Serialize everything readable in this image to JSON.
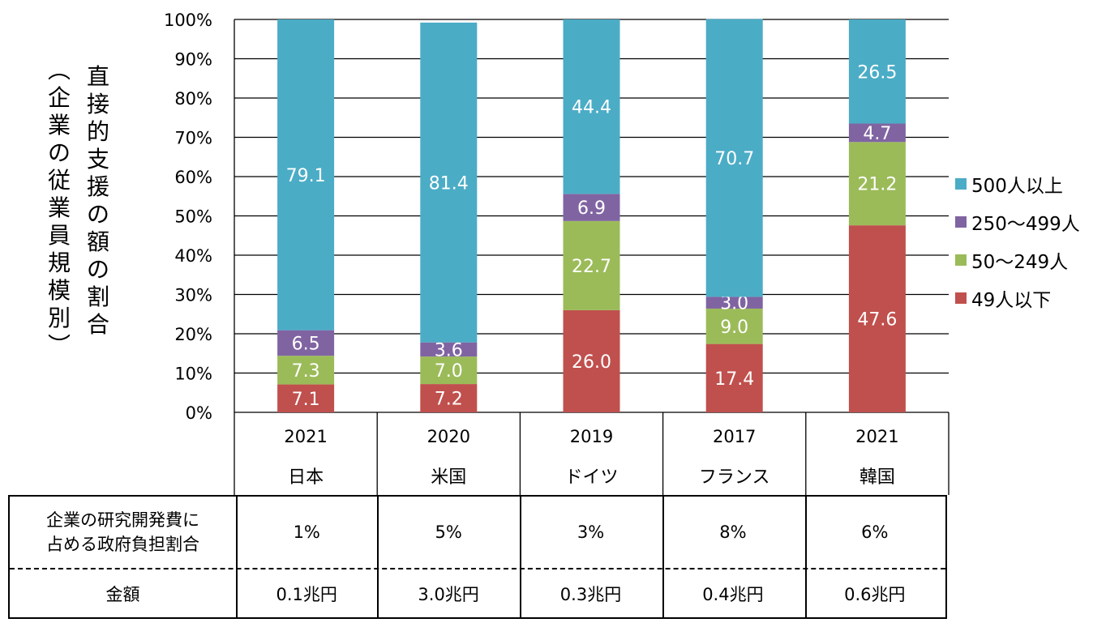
{
  "y_axis_title": "直接的支援の額の割合",
  "y_axis_subtitle": "(企業の従業員規模別)",
  "chart_data": {
    "type": "bar",
    "stacked": true,
    "percent": true,
    "categories": [
      {
        "year": "2021",
        "country": "日本"
      },
      {
        "year": "2020",
        "country": "米国"
      },
      {
        "year": "2019",
        "country": "ドイツ"
      },
      {
        "year": "2017",
        "country": "フランス"
      },
      {
        "year": "2021",
        "country": "韓国"
      }
    ],
    "series": [
      {
        "name": "49人以下",
        "color": "#c0504d",
        "label_color": "#ffffff",
        "values": [
          7.1,
          7.2,
          26.0,
          17.4,
          47.6
        ]
      },
      {
        "name": "50～249人",
        "color": "#9bbb59",
        "label_color": "#ffffff",
        "values": [
          7.3,
          7.0,
          22.7,
          9.0,
          21.2
        ]
      },
      {
        "name": "250～499人",
        "color": "#8064a2",
        "label_color": "#ffffff",
        "values": [
          6.5,
          3.6,
          6.9,
          3.0,
          4.7
        ]
      },
      {
        "name": "500人以上",
        "color": "#4bacc6",
        "label_color": "#ffffff",
        "values": [
          79.1,
          81.4,
          44.4,
          70.7,
          26.5
        ]
      }
    ],
    "legend_order": [
      "500人以上",
      "250～499人",
      "50～249人",
      "49人以下"
    ],
    "ylim": [
      0,
      100
    ],
    "yticks": [
      "0%",
      "10%",
      "20%",
      "30%",
      "40%",
      "50%",
      "60%",
      "70%",
      "80%",
      "90%",
      "100%"
    ],
    "grid": true,
    "legend_position": "right"
  },
  "table": {
    "row1_label_line1": "企業の研究開発費に",
    "row1_label_line2": "占める政府負担割合",
    "row1_values": [
      "1%",
      "5%",
      "3%",
      "8%",
      "6%"
    ],
    "row2_label": "金額",
    "row2_values": [
      "0.1兆円",
      "3.0兆円",
      "0.3兆円",
      "0.4兆円",
      "0.6兆円"
    ]
  }
}
